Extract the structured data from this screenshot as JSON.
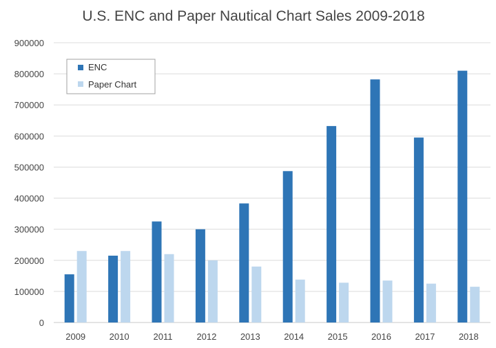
{
  "chart_data": {
    "type": "bar",
    "title": "U.S. ENC and Paper Nautical Chart Sales 2009-2018",
    "xlabel": "",
    "ylabel": "",
    "categories": [
      "2009",
      "2010",
      "2011",
      "2012",
      "2013",
      "2014",
      "2015",
      "2016",
      "2017",
      "2018"
    ],
    "series": [
      {
        "name": "ENC",
        "color": "#2e75b6",
        "values": [
          155000,
          215000,
          325000,
          300000,
          383000,
          487000,
          632000,
          782000,
          595000,
          810000
        ]
      },
      {
        "name": "Paper Chart",
        "color": "#bdd7ee",
        "values": [
          230000,
          230000,
          220000,
          200000,
          180000,
          138000,
          128000,
          135000,
          125000,
          115000
        ]
      }
    ],
    "ylim": [
      0,
      900000
    ],
    "yticks": [
      "0",
      "100000",
      "200000",
      "300000",
      "400000",
      "500000",
      "600000",
      "700000",
      "800000",
      "900000"
    ],
    "grid": true,
    "legend_position": "top-left"
  }
}
